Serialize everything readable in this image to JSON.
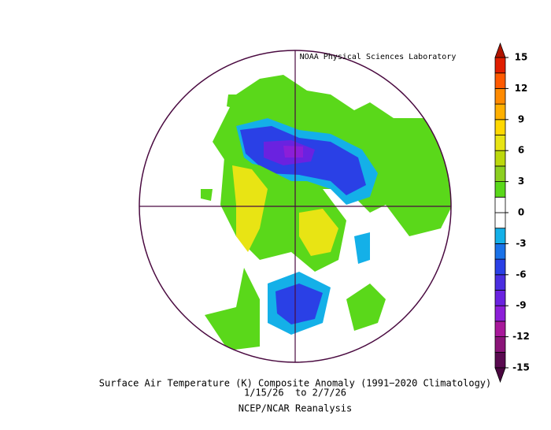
{
  "header": {
    "credit": "NOAA Physical Sciences Laboratory"
  },
  "caption": {
    "title": "Surface Air Temperature (K) Composite Anomaly (1991−2020 Climatology)",
    "dates": "1/15/26  to 2/7/26",
    "source": "NCEP/NCAR Reanalysis"
  },
  "colorbar": {
    "range": [
      -15,
      15
    ],
    "ticks": [
      15,
      12,
      9,
      6,
      3,
      0,
      -3,
      -6,
      -9,
      -12,
      -15
    ],
    "colors": [
      "#5a0a50",
      "#8a1478",
      "#a8189a",
      "#8c1ed8",
      "#6a22e0",
      "#4a2ee0",
      "#2a40e6",
      "#1a72e8",
      "#14b0e8",
      "#ffffff",
      "#ffffff",
      "#5ad81a",
      "#8ccf20",
      "#bcd80c",
      "#e8e414",
      "#ffd800",
      "#ffb000",
      "#ff8a00",
      "#ff5a00",
      "#e01e00"
    ],
    "under_color": "#4a0640",
    "over_color": "#b01400"
  }
}
